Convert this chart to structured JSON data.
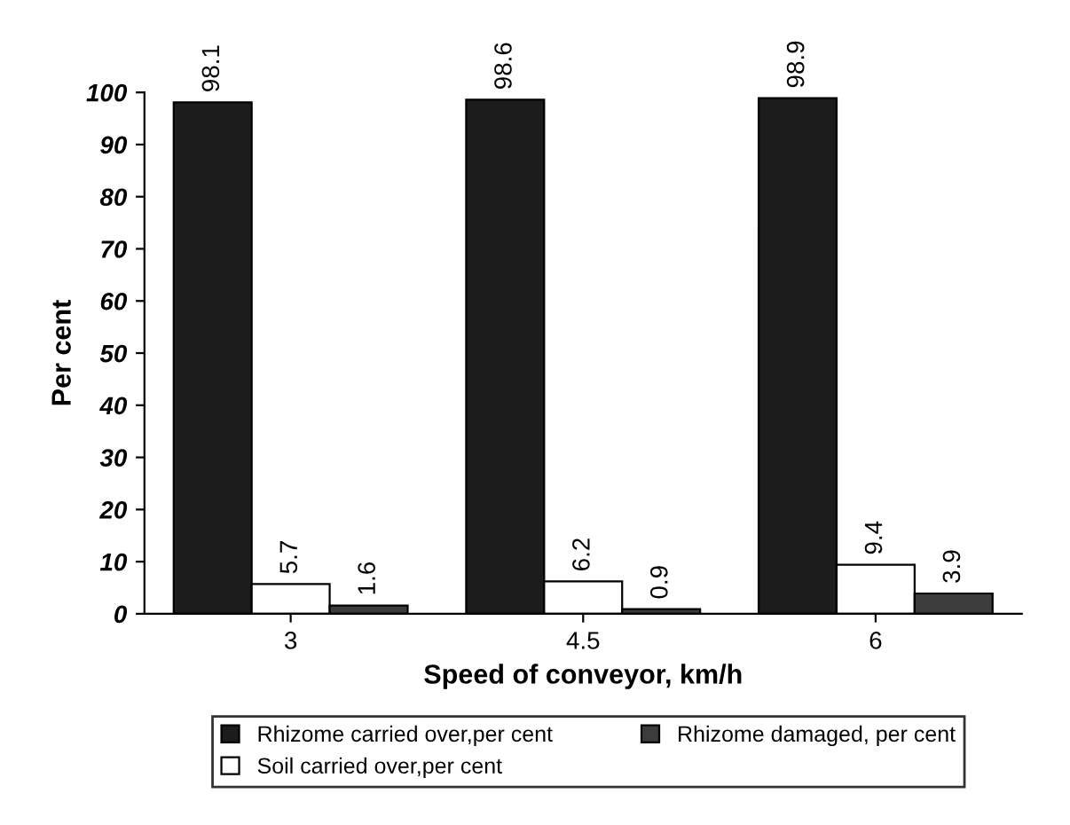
{
  "chart_data": {
    "type": "bar",
    "xlabel": "Speed of conveyor, km/h",
    "ylabel": "Per cent",
    "categories": [
      "3",
      "4.5",
      "6"
    ],
    "series": [
      {
        "name": "Rhizome carried over,per cent",
        "color": "#1c1c1c",
        "values": [
          98.1,
          98.6,
          98.9
        ]
      },
      {
        "name": "Soil carried over,per cent",
        "color": "#ffffff",
        "values": [
          5.7,
          6.2,
          9.4
        ]
      },
      {
        "name": "Rhizome damaged, per cent",
        "color": "#3c3c3c",
        "values": [
          1.6,
          0.9,
          3.9
        ]
      }
    ],
    "ylim": [
      0,
      100
    ],
    "yticks": [
      0,
      10,
      20,
      30,
      40,
      50,
      60,
      70,
      80,
      90,
      100
    ],
    "data_labels": true,
    "legend": "bottom",
    "grid": false
  }
}
